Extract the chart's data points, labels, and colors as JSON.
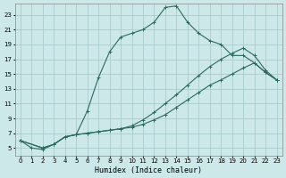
{
  "xlabel": "Humidex (Indice chaleur)",
  "bg_color": "#cce8e8",
  "grid_color": "#aacccc",
  "line_color": "#2a6b5e",
  "xlim": [
    -0.5,
    23.5
  ],
  "ylim": [
    4,
    24.5
  ],
  "xticks": [
    0,
    1,
    2,
    3,
    4,
    5,
    6,
    7,
    8,
    9,
    10,
    11,
    12,
    13,
    14,
    15,
    16,
    17,
    18,
    19,
    20,
    21,
    22,
    23
  ],
  "yticks": [
    5,
    7,
    9,
    11,
    13,
    15,
    17,
    19,
    21,
    23
  ],
  "line1_x": [
    0,
    1,
    2,
    3,
    4,
    5,
    6,
    7,
    8,
    9,
    10,
    11,
    12,
    13,
    14,
    15,
    16,
    17,
    18,
    19,
    20,
    21,
    22,
    23
  ],
  "line1_y": [
    6,
    5,
    4.8,
    5.5,
    6.5,
    6.8,
    10,
    14.5,
    18,
    20,
    20.5,
    21,
    22,
    24,
    24.2,
    22,
    20.5,
    19.5,
    19,
    17.5,
    17.5,
    16.5,
    15.2,
    14.2
  ],
  "line2_x": [
    0,
    2,
    3,
    4,
    5,
    6,
    7,
    8,
    9,
    10,
    11,
    12,
    13,
    14,
    15,
    16,
    17,
    18,
    19,
    20,
    21,
    22,
    23
  ],
  "line2_y": [
    6,
    5,
    5.5,
    6.5,
    6.8,
    7.0,
    7.2,
    7.4,
    7.6,
    7.8,
    8.2,
    8.8,
    9.5,
    10.5,
    11.5,
    12.5,
    13.5,
    14.2,
    15.0,
    15.8,
    16.5,
    15.2,
    14.2
  ],
  "line3_x": [
    0,
    2,
    3,
    4,
    5,
    6,
    7,
    8,
    9,
    10,
    11,
    12,
    13,
    14,
    15,
    16,
    17,
    18,
    19,
    20,
    21,
    22,
    23
  ],
  "line3_y": [
    6,
    5,
    5.5,
    6.5,
    6.8,
    7.0,
    7.2,
    7.4,
    7.6,
    8.0,
    8.8,
    9.8,
    11.0,
    12.2,
    13.5,
    14.8,
    16.0,
    17.0,
    17.8,
    18.5,
    17.5,
    15.5,
    14.2
  ]
}
